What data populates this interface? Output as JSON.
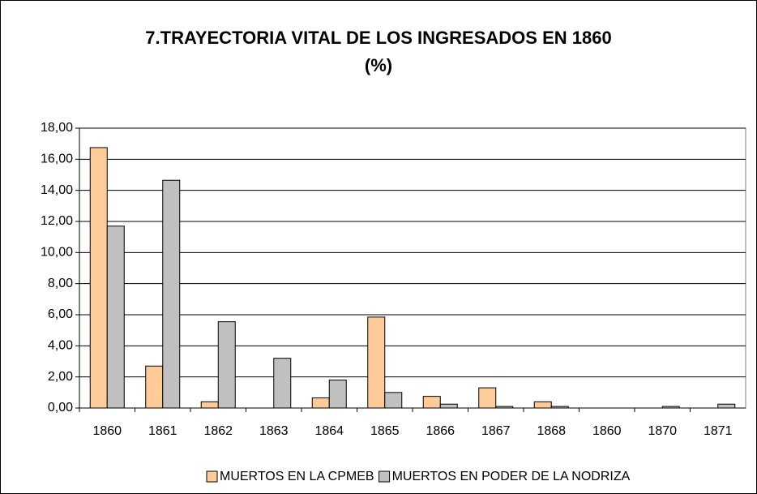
{
  "chart_data": {
    "type": "bar",
    "title": "7.TRAYECTORIA VITAL DE LOS INGRESADOS EN 1860",
    "subtitle": "(%)",
    "categories": [
      "1860",
      "1861",
      "1862",
      "1863",
      "1864",
      "1865",
      "1866",
      "1867",
      "1868",
      "1860",
      "1870",
      "1871"
    ],
    "series": [
      {
        "name": "MUERTOS EN LA CPMEB",
        "color": "#FFCC99",
        "values": [
          16.75,
          2.7,
          0.4,
          0,
          0.65,
          5.85,
          0.75,
          1.3,
          0.4,
          0,
          0,
          0
        ]
      },
      {
        "name": "MUERTOS EN PODER DE LA NODRIZA",
        "color": "#C0C0C0",
        "values": [
          11.7,
          14.65,
          5.55,
          3.2,
          1.8,
          1.0,
          0.25,
          0.1,
          0.1,
          0,
          0.1,
          0.25
        ]
      }
    ],
    "ylim": [
      0,
      18
    ],
    "yticks": [
      {
        "value": 0,
        "label": "0,00"
      },
      {
        "value": 2,
        "label": "2,00"
      },
      {
        "value": 4,
        "label": "4,00"
      },
      {
        "value": 6,
        "label": "6,00"
      },
      {
        "value": 8,
        "label": "8,00"
      },
      {
        "value": 10,
        "label": "10,00"
      },
      {
        "value": 12,
        "label": "12,00"
      },
      {
        "value": 14,
        "label": "14,00"
      },
      {
        "value": 16,
        "label": "16,00"
      },
      {
        "value": 18,
        "label": "18,00"
      }
    ],
    "grid": true,
    "legend": "bottom"
  }
}
